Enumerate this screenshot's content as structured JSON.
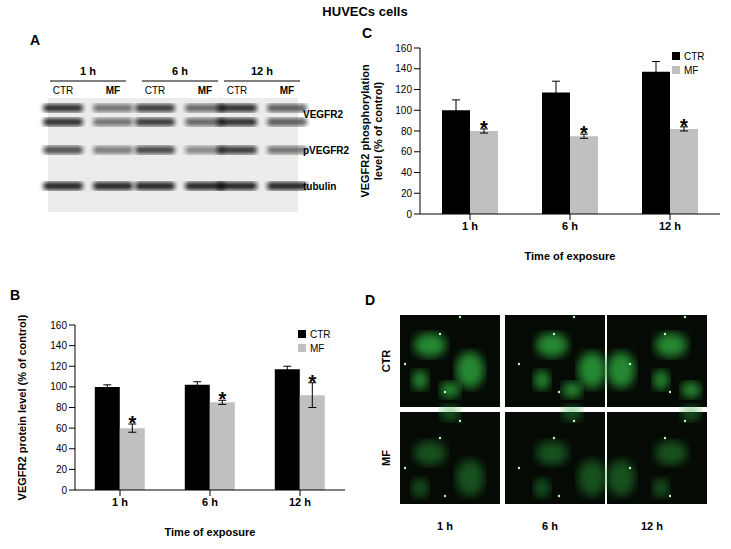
{
  "title": "HUVECs cells",
  "blot": {
    "label": "A",
    "times": [
      "1 h",
      "6 h",
      "12 h"
    ],
    "lanes": [
      "CTR",
      "MF"
    ],
    "bands": [
      "VEGFR2",
      "pVEGFR2",
      "tubulin"
    ]
  },
  "chart_data": [
    {
      "panel": "B",
      "type": "bar",
      "categories": [
        "1 h",
        "6 h",
        "12 h"
      ],
      "xlabel": "Time of exposure",
      "ylabel": [
        "VEGFR2 protein level (% of control)"
      ],
      "ylim": [
        0,
        160
      ],
      "yticks": [
        0,
        20,
        40,
        60,
        80,
        100,
        120,
        140,
        160
      ],
      "grid": false,
      "legend": "upper right",
      "series": [
        {
          "name": "CTR",
          "color": "#000000",
          "values": [
            100,
            102,
            117
          ],
          "errors": [
            2,
            3,
            3
          ]
        },
        {
          "name": "MF",
          "color": "#c0c0c0",
          "values": [
            60,
            85,
            92
          ],
          "errors": [
            4,
            2,
            12
          ],
          "significance": [
            "*",
            "*",
            "*"
          ]
        }
      ]
    },
    {
      "panel": "C",
      "type": "bar",
      "categories": [
        "1 h",
        "6 h",
        "12 h"
      ],
      "xlabel": "Time of exposure",
      "ylabel": [
        "VEGFR2 phosphorylation",
        "level (% of control)"
      ],
      "ylim": [
        0,
        160
      ],
      "yticks": [
        0,
        20,
        40,
        60,
        80,
        100,
        120,
        140,
        160
      ],
      "grid": false,
      "legend": "upper right",
      "series": [
        {
          "name": "CTR",
          "color": "#000000",
          "values": [
            100,
            117,
            137
          ],
          "errors": [
            10,
            11,
            10
          ]
        },
        {
          "name": "MF",
          "color": "#c0c0c0",
          "values": [
            80,
            75,
            82
          ],
          "errors": [
            2,
            2,
            2
          ],
          "significance": [
            "*",
            "*",
            "*"
          ]
        }
      ]
    }
  ],
  "micrographs": {
    "label": "D",
    "rows": [
      "CTR",
      "MF"
    ],
    "columns": [
      "1 h",
      "6 h",
      "12 h"
    ]
  }
}
